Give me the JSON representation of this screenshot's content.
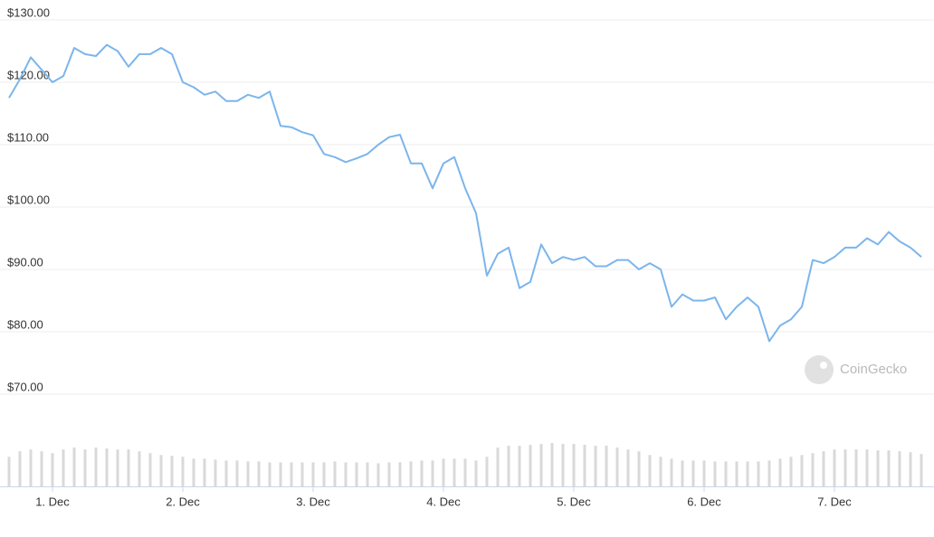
{
  "chart_data": {
    "type": "line",
    "watermark": "CoinGecko",
    "categories": [
      null,
      null,
      null,
      null,
      "1. Dec",
      null,
      null,
      null,
      null,
      null,
      null,
      null,
      null,
      null,
      null,
      null,
      "2. Dec",
      null,
      null,
      null,
      null,
      null,
      null,
      null,
      null,
      null,
      null,
      null,
      "3. Dec",
      null,
      null,
      null,
      null,
      null,
      null,
      null,
      null,
      null,
      null,
      null,
      "4. Dec",
      null,
      null,
      null,
      null,
      null,
      null,
      null,
      null,
      null,
      null,
      null,
      "5. Dec",
      null,
      null,
      null,
      null,
      null,
      null,
      null,
      null,
      null,
      null,
      null,
      "6. Dec",
      null,
      null,
      null,
      null,
      null,
      null,
      null,
      null,
      null,
      null,
      null,
      "7. Dec",
      null,
      null,
      null,
      null,
      null,
      null,
      null,
      null
    ],
    "series": [
      {
        "color": "#7cb5ec",
        "values": [
          117.5,
          120.5,
          124,
          122,
          120,
          121,
          125.5,
          124.5,
          124.2,
          126,
          125,
          122.5,
          124.5,
          124.5,
          125.5,
          124.5,
          120,
          119.2,
          118,
          118.5,
          117,
          117,
          118,
          117.5,
          118.5,
          113,
          112.8,
          112,
          111.5,
          108.5,
          108,
          107.2,
          107.8,
          108.5,
          110,
          111.2,
          111.6,
          107,
          107,
          103,
          107,
          108,
          103,
          99,
          89,
          92.5,
          93.5,
          87,
          88,
          94,
          91,
          92,
          91.5,
          92,
          90.5,
          90.5,
          91.5,
          91.5,
          90,
          91,
          90,
          84,
          86,
          85,
          85,
          85.5,
          82,
          84,
          85.5,
          84,
          78.5,
          81,
          82,
          84,
          91.5,
          91,
          92,
          93.5,
          93.5,
          95,
          94,
          96,
          94.5,
          93.5,
          92
        ]
      }
    ],
    "volume_color": "#d9d9d9",
    "volume_values": [
      32,
      38,
      40,
      38,
      36,
      40,
      42,
      40,
      42,
      41,
      40,
      40,
      38,
      36,
      34,
      33,
      32,
      30,
      30,
      29,
      28,
      28,
      27,
      27,
      26,
      26,
      26,
      26,
      26,
      26,
      27,
      26,
      26,
      26,
      25,
      26,
      26,
      27,
      28,
      28,
      30,
      30,
      30,
      28,
      32,
      42,
      44,
      44,
      45,
      46,
      47,
      46,
      46,
      45,
      44,
      44,
      42,
      40,
      38,
      34,
      32,
      30,
      28,
      28,
      28,
      27,
      27,
      27,
      27,
      27,
      28,
      30,
      32,
      34,
      36,
      38,
      40,
      40,
      40,
      40,
      39,
      39,
      38,
      37,
      35
    ],
    "ylim": [
      70,
      130
    ],
    "yticks": [
      {
        "value": 70,
        "label": "$70.00"
      },
      {
        "value": 80,
        "label": "$80.00"
      },
      {
        "value": 90,
        "label": "$90.00"
      },
      {
        "value": 100,
        "label": "$100.00"
      },
      {
        "value": 110,
        "label": "$110.00"
      },
      {
        "value": 120,
        "label": "$120.00"
      },
      {
        "value": 130,
        "label": "$130.00"
      }
    ],
    "grid": true
  }
}
